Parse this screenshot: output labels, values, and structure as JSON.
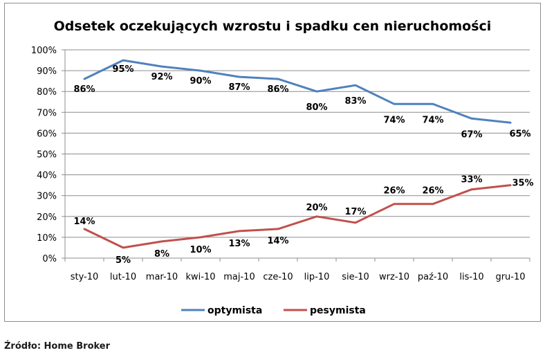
{
  "chart_data": {
    "type": "line",
    "title": "Odsetek oczekujących wzrostu i spadku cen nieruchomości",
    "categories": [
      "sty-10",
      "lut-10",
      "mar-10",
      "kwi-10",
      "maj-10",
      "cze-10",
      "lip-10",
      "sie-10",
      "wrz-10",
      "paź-10",
      "lis-10",
      "gru-10"
    ],
    "series": [
      {
        "name": "optymista",
        "color": "#4f81bd",
        "values": [
          86,
          95,
          92,
          90,
          87,
          86,
          80,
          83,
          74,
          74,
          67,
          65
        ],
        "labels": [
          "86%",
          "95%",
          "92%",
          "90%",
          "87%",
          "86%",
          "80%",
          "83%",
          "74%",
          "74%",
          "67%",
          "65%"
        ]
      },
      {
        "name": "pesymista",
        "color": "#c0504d",
        "values": [
          14,
          5,
          8,
          10,
          13,
          14,
          20,
          17,
          26,
          26,
          33,
          35
        ],
        "labels": [
          "14%",
          "5%",
          "8%",
          "10%",
          "13%",
          "14%",
          "20%",
          "17%",
          "26%",
          "26%",
          "33%",
          "35%"
        ]
      }
    ],
    "y_ticks": [
      "0%",
      "10%",
      "20%",
      "30%",
      "40%",
      "50%",
      "60%",
      "70%",
      "80%",
      "90%",
      "100%"
    ],
    "ylim": [
      0,
      100
    ],
    "grid": true,
    "legend_position": "bottom"
  },
  "source": "Źródło: Home Broker"
}
